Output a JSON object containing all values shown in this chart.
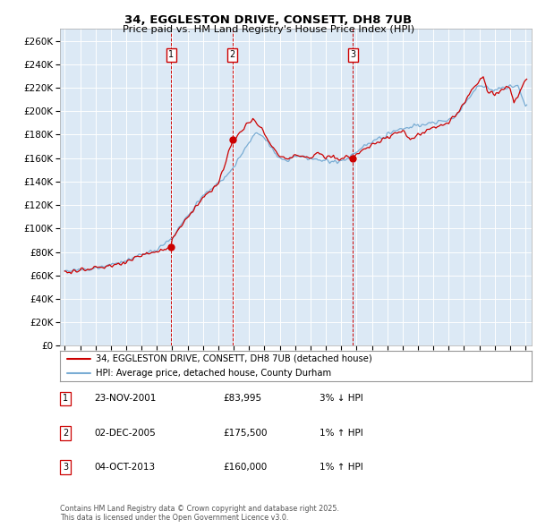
{
  "title_line1": "34, EGGLESTON DRIVE, CONSETT, DH8 7UB",
  "title_line2": "Price paid vs. HM Land Registry's House Price Index (HPI)",
  "bg_color": "#dce9f5",
  "hpi_color": "#7aadd4",
  "price_color": "#cc0000",
  "marker_color": "#cc0000",
  "dashed_color": "#cc0000",
  "ylim": [
    0,
    270000
  ],
  "yticks": [
    0,
    20000,
    40000,
    60000,
    80000,
    100000,
    120000,
    140000,
    160000,
    180000,
    200000,
    220000,
    240000,
    260000
  ],
  "sales": [
    {
      "label": "1",
      "date": "23-NOV-2001",
      "x": 2001.92,
      "price": 83995
    },
    {
      "label": "2",
      "date": "02-DEC-2005",
      "x": 2005.92,
      "price": 175500
    },
    {
      "label": "3",
      "date": "04-OCT-2013",
      "x": 2013.75,
      "price": 160000
    }
  ],
  "legend_label1": "34, EGGLESTON DRIVE, CONSETT, DH8 7UB (detached house)",
  "legend_label2": "HPI: Average price, detached house, County Durham",
  "footnote": "Contains HM Land Registry data © Crown copyright and database right 2025.\nThis data is licensed under the Open Government Licence v3.0.",
  "table_entries": [
    {
      "num": "1",
      "date": "23-NOV-2001",
      "price": "£83,995",
      "info": "3% ↓ HPI"
    },
    {
      "num": "2",
      "date": "02-DEC-2005",
      "price": "£175,500",
      "info": "1% ↑ HPI"
    },
    {
      "num": "3",
      "date": "04-OCT-2013",
      "price": "£160,000",
      "info": "1% ↑ HPI"
    }
  ]
}
